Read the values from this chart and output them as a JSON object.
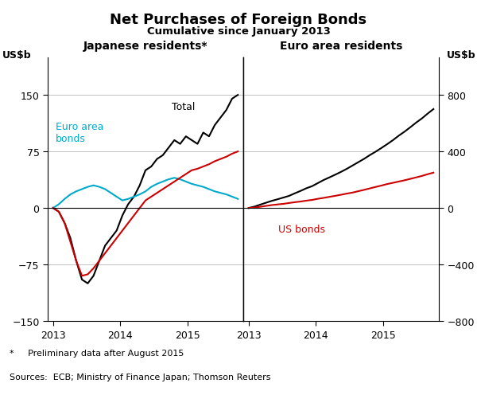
{
  "title": "Net Purchases of Foreign Bonds",
  "subtitle": "Cumulative since January 2013",
  "ylabel_left": "US$b",
  "ylabel_right": "US$b",
  "panel_left_title": "Japanese residents*",
  "panel_right_title": "Euro area residents",
  "footnote": "*     Preliminary data after August 2015",
  "source": "Sources:  ECB; Ministry of Finance Japan; Thomson Reuters",
  "left_ylim": [
    -150,
    200
  ],
  "left_yticks": [
    -150,
    -75,
    0,
    75,
    150
  ],
  "right_ylim": [
    -800,
    1067
  ],
  "right_yticks": [
    -800,
    -400,
    0,
    400,
    800
  ],
  "colors": {
    "total": "#000000",
    "euro_area_bonds": "#00AACC",
    "us_bonds_left": "#CC0000",
    "us_bonds_right": "#CC0000",
    "euro_total_right": "#000000",
    "grid": "#AAAAAA",
    "zero_line": "#000000"
  },
  "label_total": "Total",
  "label_euro_bonds": "Euro area\nbonds",
  "label_us_bonds_right": "US bonds"
}
